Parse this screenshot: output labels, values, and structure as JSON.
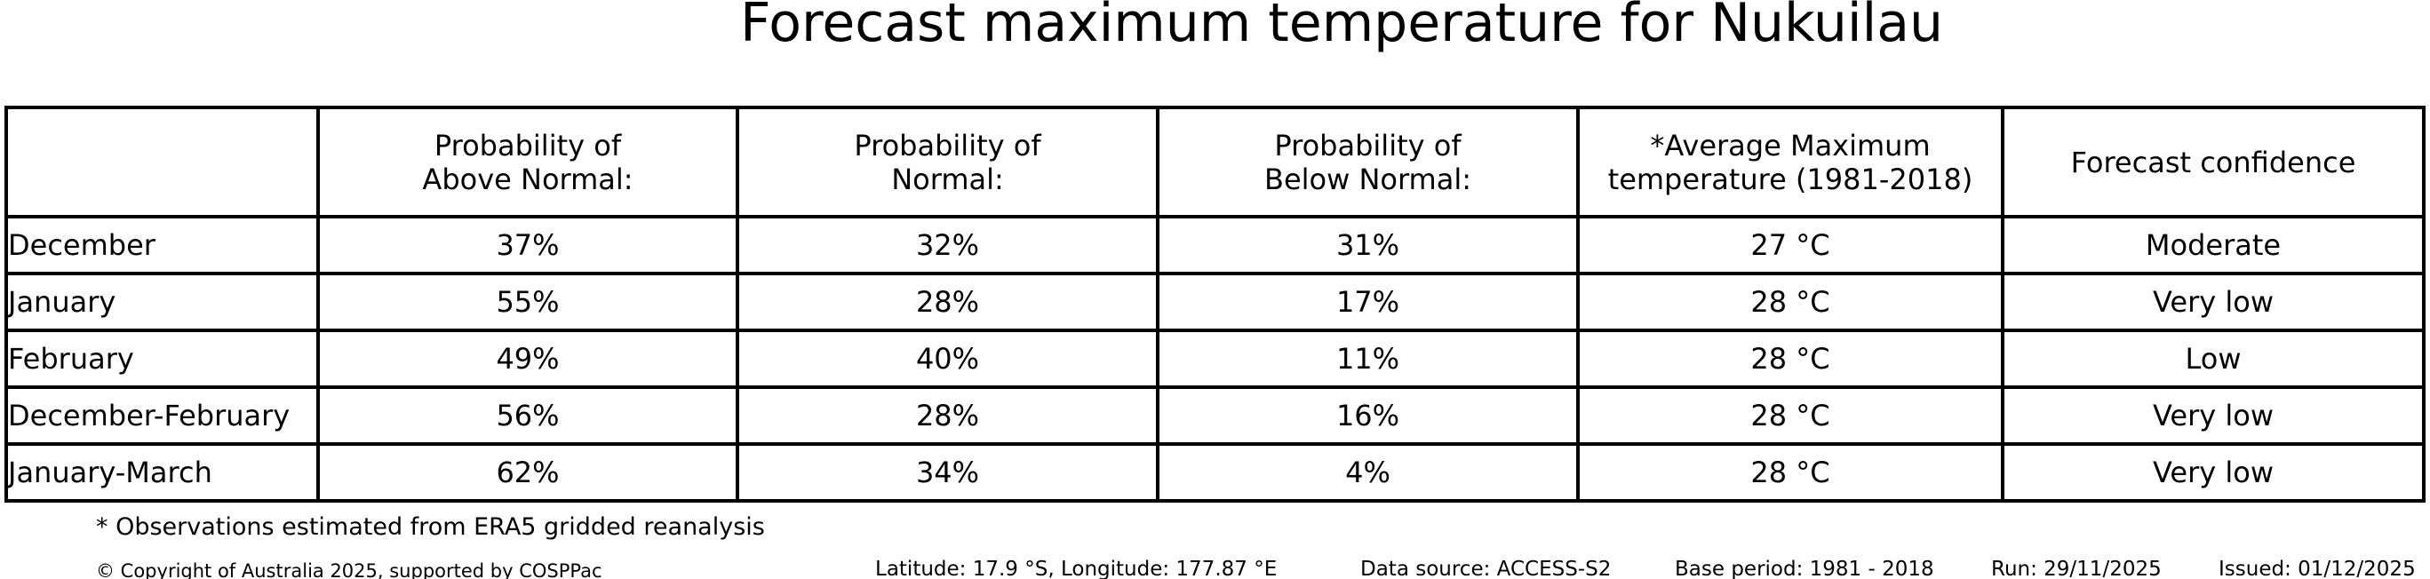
{
  "title": "Forecast maximum temperature for Nukuilau",
  "colors": {
    "background": "#ffffff",
    "text": "#000000",
    "border": "#000000"
  },
  "table": {
    "headers": [
      {
        "line1": "Probability of",
        "line2": "Above Normal:"
      },
      {
        "line1": "Probability of",
        "line2": "Normal:"
      },
      {
        "line1": "Probability of",
        "line2": "Below Normal:"
      },
      {
        "line1": "*Average Maximum",
        "line2": "temperature (1981-2018)"
      },
      {
        "line1": "Forecast confidence",
        "line2": ""
      }
    ],
    "rows": [
      {
        "label": "December",
        "above": "37%",
        "normal": "32%",
        "below": "31%",
        "avg": "27 °C",
        "confidence": "Moderate"
      },
      {
        "label": "January",
        "above": "55%",
        "normal": "28%",
        "below": "17%",
        "avg": "28 °C",
        "confidence": "Very low"
      },
      {
        "label": "February",
        "above": "49%",
        "normal": "40%",
        "below": "11%",
        "avg": "28 °C",
        "confidence": "Low"
      },
      {
        "label": "December-February",
        "above": "56%",
        "normal": "28%",
        "below": "16%",
        "avg": "28 °C",
        "confidence": "Very low"
      },
      {
        "label": "January-March",
        "above": "62%",
        "normal": "34%",
        "below": "4%",
        "avg": "28 °C",
        "confidence": "Very low"
      }
    ]
  },
  "footnote": "* Observations estimated from ERA5 gridded reanalysis",
  "footer": {
    "copyright": "© Copyright of Australia 2025, supported by COSPPac",
    "location": "Latitude: 17.9 °S, Longitude: 177.87 °E",
    "data_source": "Data source: ACCESS-S2",
    "base_period": "Base period: 1981 - 2018",
    "run": "Run: 29/11/2025",
    "issued": "Issued: 01/12/2025"
  },
  "chart_data": {
    "type": "table",
    "title": "Forecast maximum temperature for Nukuilau",
    "columns": [
      "",
      "Probability of Above Normal:",
      "Probability of Normal:",
      "Probability of Below Normal:",
      "*Average Maximum temperature (1981-2018)",
      "Forecast confidence"
    ],
    "rows": [
      [
        "December",
        "37%",
        "32%",
        "31%",
        "27 °C",
        "Moderate"
      ],
      [
        "January",
        "55%",
        "28%",
        "17%",
        "28 °C",
        "Very low"
      ],
      [
        "February",
        "49%",
        "40%",
        "11%",
        "28 °C",
        "Low"
      ],
      [
        "December-February",
        "56%",
        "28%",
        "16%",
        "28 °C",
        "Very low"
      ],
      [
        "January-March",
        "62%",
        "34%",
        "4%",
        "28 °C",
        "Very low"
      ]
    ],
    "footnote": "* Observations estimated from ERA5 gridded reanalysis",
    "probabilities_above_normal": [
      37,
      55,
      49,
      56,
      62
    ],
    "probabilities_normal": [
      32,
      28,
      40,
      28,
      34
    ],
    "probabilities_below_normal": [
      31,
      17,
      11,
      16,
      4
    ],
    "average_max_temperature_c": [
      27,
      28,
      28,
      28,
      28
    ]
  }
}
